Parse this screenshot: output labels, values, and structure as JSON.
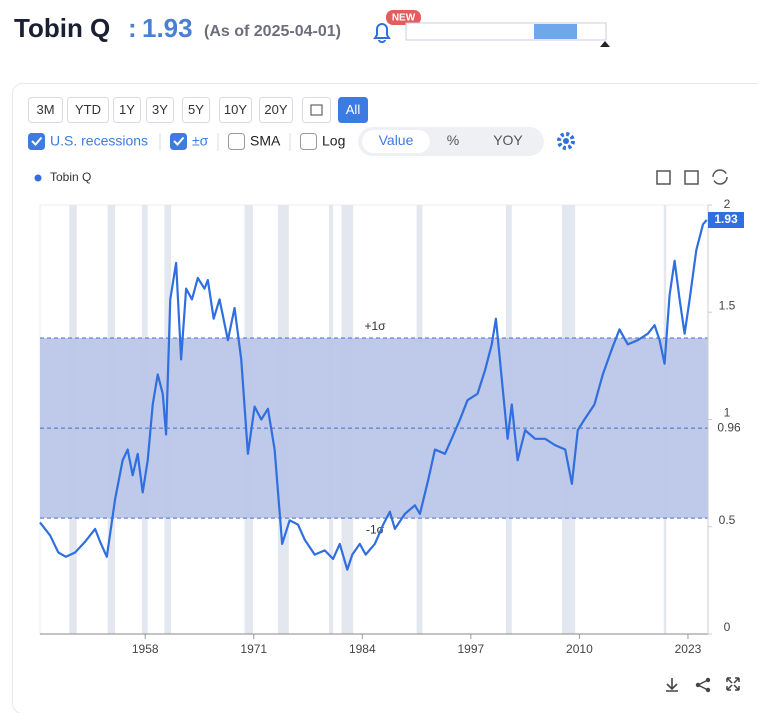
{
  "header": {
    "title": "Tobin Q",
    "separator": ":",
    "value": 1.93,
    "as_of": "(As of 2025-04-01)",
    "badge": "NEW"
  },
  "toolbar": {
    "ranges": [
      "3M",
      "YTD",
      "1Y",
      "3Y",
      "5Y",
      "10Y",
      "20Y",
      "All"
    ],
    "active_range": 7,
    "toggles": [
      {
        "label": "U.S. recessions",
        "checked": true
      },
      {
        "label": "±σ",
        "checked": true
      },
      {
        "label": "SMA",
        "checked": false
      },
      {
        "label": "Log",
        "checked": false
      }
    ],
    "modes": [
      "Value",
      "%",
      "YOY"
    ],
    "active_mode": 0
  },
  "chart_data": {
    "type": "line",
    "x": [
      1945.4,
      1946.6,
      1947.6,
      1948.5,
      1949.6,
      1950.8,
      1952,
      1952.6,
      1953.4,
      1954.4,
      1955.3,
      1955.9,
      1956.5,
      1957.1,
      1957.7,
      1958.3,
      1958.9,
      1959.5,
      1960.1,
      1960.5,
      1961,
      1961.7,
      1962.3,
      1962.9,
      1963.6,
      1964.3,
      1965.1,
      1965.5,
      1966.2,
      1966.9,
      1967.9,
      1968.7,
      1969.5,
      1970.3,
      1971.1,
      1971.9,
      1972.7,
      1973.5,
      1974.4,
      1975.3,
      1976.3,
      1977.1,
      1978.3,
      1979.5,
      1980.5,
      1981.3,
      1982.2,
      1982.8,
      1983.7,
      1984.4,
      1985.5,
      1986.5,
      1987.3,
      1987.9,
      1989.1,
      1990.3,
      1990.9,
      1991.9,
      1992.7,
      1993.9,
      1994.7,
      1995.7,
      1996.6,
      1997.8,
      1998.7,
      1999.5,
      2000,
      2000.7,
      2001.4,
      2001.9,
      2002.6,
      2003.5,
      2004.7,
      2005.9,
      2007.1,
      2008.3,
      2009.1,
      2009.8,
      2010.6,
      2011.8,
      2012.8,
      2013.9,
      2014.8,
      2015.8,
      2017,
      2018.2,
      2019,
      2019.6,
      2020.2,
      2020.8,
      2021.4,
      2022,
      2022.6,
      2023.2,
      2024,
      2024.8,
      2025.25
    ],
    "series": [
      {
        "name": "Tobin Q",
        "color": "#2f6fdf",
        "values": [
          0.52,
          0.46,
          0.38,
          0.36,
          0.38,
          0.43,
          0.49,
          0.43,
          0.36,
          0.63,
          0.81,
          0.86,
          0.74,
          0.84,
          0.66,
          0.81,
          1.07,
          1.21,
          1.12,
          0.93,
          1.56,
          1.73,
          1.28,
          1.61,
          1.56,
          1.66,
          1.61,
          1.65,
          1.47,
          1.56,
          1.37,
          1.52,
          1.28,
          0.84,
          1.06,
          1.0,
          1.05,
          0.86,
          0.42,
          0.53,
          0.51,
          0.44,
          0.37,
          0.39,
          0.35,
          0.42,
          0.3,
          0.37,
          0.42,
          0.37,
          0.42,
          0.51,
          0.57,
          0.49,
          0.56,
          0.6,
          0.56,
          0.72,
          0.86,
          0.84,
          0.91,
          1.0,
          1.09,
          1.12,
          1.23,
          1.35,
          1.47,
          1.19,
          0.91,
          1.07,
          0.81,
          0.95,
          0.91,
          0.91,
          0.88,
          0.86,
          0.7,
          0.95,
          1.0,
          1.07,
          1.21,
          1.33,
          1.42,
          1.35,
          1.37,
          1.4,
          1.44,
          1.37,
          1.26,
          1.58,
          1.74,
          1.56,
          1.4,
          1.56,
          1.79,
          1.91,
          1.93
        ]
      }
    ],
    "xlim": [
      1945.4,
      2025.4
    ],
    "xticks": [
      1958,
      1971,
      1984,
      1997,
      2010,
      2023
    ],
    "ylim": [
      0,
      2
    ],
    "yticks": [
      0,
      0.5,
      1,
      1.5,
      2
    ],
    "recessions": [
      [
        1948.9,
        1949.8
      ],
      [
        1953.5,
        1954.4
      ],
      [
        1957.6,
        1958.3
      ],
      [
        1960.3,
        1961.1
      ],
      [
        1969.9,
        1970.9
      ],
      [
        1973.9,
        1975.2
      ],
      [
        1980.0,
        1980.5
      ],
      [
        1981.5,
        1982.9
      ],
      [
        1990.5,
        1991.2
      ],
      [
        2001.2,
        2001.9
      ],
      [
        2007.9,
        2009.5
      ],
      [
        2020.1,
        2020.4
      ]
    ],
    "recession_color": "#e3e7ef",
    "sigma": {
      "mean": 0.96,
      "upper": {
        "value": 1.38,
        "label": "+1σ"
      },
      "lower": {
        "value": 0.54,
        "label": "-1σ"
      },
      "color": "#bcc6e8"
    }
  }
}
